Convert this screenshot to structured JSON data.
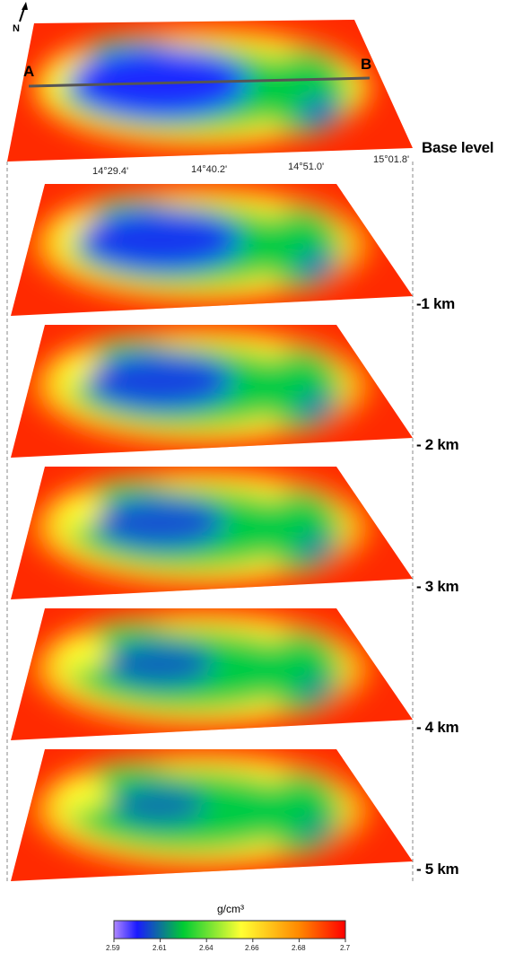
{
  "north_label": "N",
  "profile": {
    "start": "A",
    "end": "B"
  },
  "longitudes": [
    "14°29.4'",
    "14°40.2'",
    "14°51.0'",
    "15°01.8'"
  ],
  "levels": [
    "Base level",
    "-1 km",
    "- 2 km",
    "- 3 km",
    "- 4 km",
    "- 5 km"
  ],
  "colorbar": {
    "unit": "g/cm³",
    "ticks": [
      "2.59",
      "2.61",
      "2.64",
      "2.66",
      "2.68",
      "2.7"
    ],
    "colors": [
      "#b088ff",
      "#1a1aff",
      "#00cc33",
      "#ffff33",
      "#ff8800",
      "#ff0000"
    ]
  }
}
